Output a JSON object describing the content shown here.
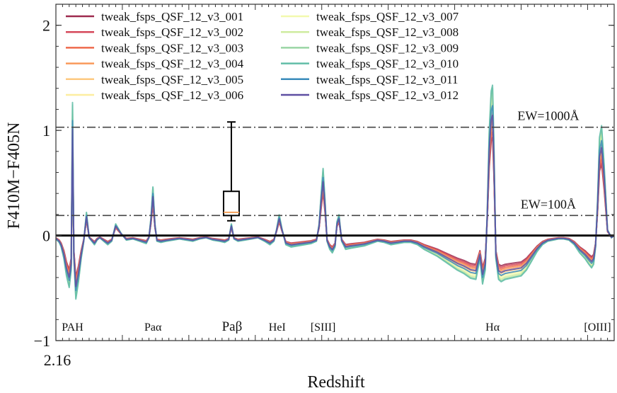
{
  "chart_data": {
    "type": "line",
    "title": "",
    "xlabel": "Redshift",
    "ylabel": "F410M−F405N",
    "ylim": [
      -1.0,
      2.2
    ],
    "xlim": [
      2.16,
      3.0
    ],
    "x_tick_labels": [
      {
        "value": 2.16,
        "label": "2.16"
      }
    ],
    "y_ticks": [
      -1,
      0,
      1,
      2
    ],
    "legend_position": "top-left",
    "reference_lines": [
      {
        "label": "EW=1000Å",
        "y": 1.03,
        "style": "dash-dot"
      },
      {
        "label": "EW=100Å",
        "y": 0.19,
        "style": "dash-dot"
      }
    ],
    "zero_line": 0,
    "line_annotations": [
      {
        "text": "PAH",
        "x": 2.185
      },
      {
        "text": "Paα",
        "x": 2.306
      },
      {
        "text": "Paβ",
        "x": 2.425
      },
      {
        "text": "HeI",
        "x": 2.493
      },
      {
        "text": "[SIII]",
        "x": 2.562
      },
      {
        "text": "Hα",
        "x": 2.817
      },
      {
        "text": "[OIII]",
        "x": 2.975
      }
    ],
    "box_marker": {
      "x": 2.424,
      "whisker_low": 0.14,
      "q1": 0.19,
      "median": 0.22,
      "q3": 0.42,
      "whisker_high": 1.08
    },
    "series": [
      {
        "name": "tweak_fsps_QSF_12_v3_001",
        "color": "#9e2a4f",
        "scale": 0.72
      },
      {
        "name": "tweak_fsps_QSF_12_v3_002",
        "color": "#d5485a",
        "scale": 0.76
      },
      {
        "name": "tweak_fsps_QSF_12_v3_003",
        "color": "#ee6a4c",
        "scale": 0.8
      },
      {
        "name": "tweak_fsps_QSF_12_v3_004",
        "color": "#f99a5b",
        "scale": 0.84
      },
      {
        "name": "tweak_fsps_QSF_12_v3_005",
        "color": "#fdc980",
        "scale": 0.9
      },
      {
        "name": "tweak_fsps_QSF_12_v3_006",
        "color": "#fdeeA0",
        "scale": 0.96
      },
      {
        "name": "tweak_fsps_QSF_12_v3_007",
        "color": "#f2f9ae",
        "scale": 1.0
      },
      {
        "name": "tweak_fsps_QSF_12_v3_008",
        "color": "#cfeca0",
        "scale": 1.04
      },
      {
        "name": "tweak_fsps_QSF_12_v3_009",
        "color": "#99d5a4",
        "scale": 1.08
      },
      {
        "name": "tweak_fsps_QSF_12_v3_010",
        "color": "#62bda8",
        "scale": 1.1
      },
      {
        "name": "tweak_fsps_QSF_12_v3_011",
        "color": "#3a8bbb",
        "scale": 0.95
      },
      {
        "name": "tweak_fsps_QSF_12_v3_012",
        "color": "#5e4fa2",
        "scale": 0.88
      }
    ],
    "base_profile": {
      "x": [
        2.16,
        2.165,
        2.168,
        2.172,
        2.176,
        2.18,
        2.183,
        2.185,
        2.187,
        2.19,
        2.194,
        2.198,
        2.202,
        2.206,
        2.21,
        2.214,
        2.218,
        2.222,
        2.226,
        2.232,
        2.238,
        2.244,
        2.25,
        2.258,
        2.266,
        2.276,
        2.286,
        2.296,
        2.3,
        2.303,
        2.306,
        2.309,
        2.312,
        2.318,
        2.326,
        2.336,
        2.346,
        2.356,
        2.366,
        2.376,
        2.386,
        2.396,
        2.406,
        2.414,
        2.42,
        2.424,
        2.428,
        2.434,
        2.444,
        2.454,
        2.464,
        2.474,
        2.482,
        2.488,
        2.492,
        2.496,
        2.5,
        2.506,
        2.514,
        2.524,
        2.534,
        2.544,
        2.552,
        2.556,
        2.559,
        2.562,
        2.565,
        2.568,
        2.572,
        2.576,
        2.58,
        2.583,
        2.586,
        2.59,
        2.596,
        2.604,
        2.614,
        2.624,
        2.634,
        2.644,
        2.654,
        2.664,
        2.674,
        2.684,
        2.694,
        2.704,
        2.714,
        2.724,
        2.734,
        2.744,
        2.754,
        2.764,
        2.774,
        2.784,
        2.792,
        2.798,
        2.802,
        2.806,
        2.809,
        2.812,
        2.815,
        2.817,
        2.819,
        2.822,
        2.826,
        2.83,
        2.836,
        2.844,
        2.852,
        2.86,
        2.868,
        2.876,
        2.884,
        2.892,
        2.9,
        2.908,
        2.916,
        2.924,
        2.932,
        2.94,
        2.948,
        2.956,
        2.962,
        2.966,
        2.969,
        2.972,
        2.975,
        2.978,
        2.981,
        2.985,
        2.99,
        2.996,
        3.0
      ],
      "y": [
        -0.03,
        -0.06,
        -0.1,
        -0.2,
        -0.35,
        -0.45,
        -0.3,
        1.15,
        -0.2,
        -0.55,
        -0.4,
        -0.2,
        -0.05,
        0.2,
        -0.02,
        -0.05,
        -0.08,
        -0.04,
        -0.02,
        -0.05,
        -0.08,
        -0.05,
        0.1,
        0.02,
        -0.04,
        -0.03,
        -0.05,
        -0.07,
        -0.02,
        0.15,
        0.42,
        0.1,
        -0.05,
        -0.06,
        -0.05,
        -0.04,
        -0.03,
        -0.04,
        -0.05,
        -0.03,
        -0.02,
        -0.04,
        -0.05,
        -0.06,
        -0.04,
        0.1,
        -0.03,
        -0.05,
        -0.04,
        -0.03,
        -0.02,
        -0.05,
        -0.08,
        -0.05,
        0.05,
        0.18,
        0.06,
        -0.08,
        -0.1,
        -0.09,
        -0.08,
        -0.07,
        -0.05,
        0.1,
        0.35,
        0.58,
        0.3,
        -0.05,
        -0.12,
        -0.15,
        -0.1,
        0.12,
        0.18,
        -0.05,
        -0.12,
        -0.11,
        -0.1,
        -0.09,
        -0.07,
        -0.05,
        -0.06,
        -0.08,
        -0.07,
        -0.06,
        -0.06,
        -0.08,
        -0.12,
        -0.15,
        -0.18,
        -0.22,
        -0.26,
        -0.3,
        -0.33,
        -0.37,
        -0.38,
        -0.2,
        -0.42,
        -0.3,
        0.2,
        0.9,
        1.25,
        1.3,
        0.8,
        -0.2,
        -0.38,
        -0.4,
        -0.38,
        -0.37,
        -0.36,
        -0.35,
        -0.3,
        -0.22,
        -0.14,
        -0.08,
        -0.05,
        -0.04,
        -0.03,
        -0.03,
        -0.04,
        -0.08,
        -0.15,
        -0.2,
        -0.25,
        -0.28,
        -0.25,
        -0.1,
        0.3,
        0.85,
        0.95,
        0.6,
        0.05,
        -0.02,
        0.0
      ]
    }
  }
}
